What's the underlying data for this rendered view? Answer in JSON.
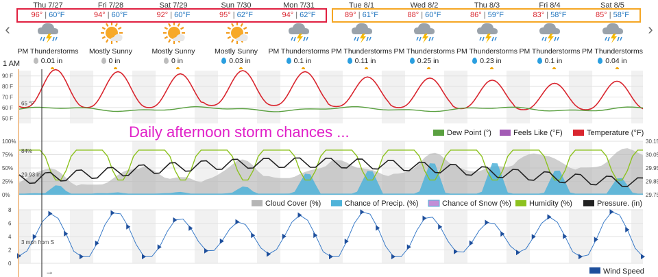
{
  "start_time_label": "1 AM",
  "days": [
    {
      "name": "Thu 7/27",
      "hi": "96°",
      "lo": "60°F",
      "icon": "thunderstorm-icon",
      "condition": "PM Thunderstorms",
      "precip": "0.01 in",
      "drop": "gray"
    },
    {
      "name": "Fri 7/28",
      "hi": "94°",
      "lo": "60°F",
      "icon": "sun-icon",
      "condition": "Mostly Sunny",
      "precip": "0 in",
      "drop": "gray"
    },
    {
      "name": "Sat 7/29",
      "hi": "92°",
      "lo": "60°F",
      "icon": "sun-icon",
      "condition": "Mostly Sunny",
      "precip": "0 in",
      "drop": "gray"
    },
    {
      "name": "Sun 7/30",
      "hi": "95°",
      "lo": "62°F",
      "icon": "sun-icon",
      "condition": "Mostly Sunny",
      "precip": "0.03 in",
      "drop": "blue"
    },
    {
      "name": "Mon 7/31",
      "hi": "94°",
      "lo": "62°F",
      "icon": "thunderstorm-icon",
      "condition": "PM Thunderstorms",
      "precip": "0.1 in",
      "drop": "blue"
    },
    {
      "name": "Tue 8/1",
      "hi": "89°",
      "lo": "61°F",
      "icon": "thunderstorm-icon",
      "condition": "PM Thunderstorms",
      "precip": "0.11 in",
      "drop": "blue"
    },
    {
      "name": "Wed 8/2",
      "hi": "88°",
      "lo": "60°F",
      "icon": "thunderstorm-icon",
      "condition": "PM Thunderstorms",
      "precip": "0.25 in",
      "drop": "blue"
    },
    {
      "name": "Thu 8/3",
      "hi": "86°",
      "lo": "59°F",
      "icon": "thunderstorm-icon",
      "condition": "PM Thunderstorms",
      "precip": "0.23 in",
      "drop": "blue"
    },
    {
      "name": "Fri 8/4",
      "hi": "83°",
      "lo": "58°F",
      "icon": "thunderstorm-icon",
      "condition": "PM Thunderstorms",
      "precip": "0.1 in",
      "drop": "blue"
    },
    {
      "name": "Sat 8/5",
      "hi": "85°",
      "lo": "58°F",
      "icon": "thunderstorm-icon",
      "condition": "PM Thunderstorms",
      "precip": "0.04 in",
      "drop": "blue"
    }
  ],
  "annotation": "Daily afternoon storm chances ...",
  "chart_data": [
    {
      "type": "line",
      "ylabel": "",
      "ylim": [
        45,
        95
      ],
      "y_ticks": [
        "90 F",
        "80 F",
        "70 F",
        "60 F",
        "50 F"
      ],
      "current_label": "65 °F",
      "legend": [
        "Dew Point (°)",
        "Feels Like (°F)",
        "Temperature (°F)"
      ],
      "series": [
        {
          "name": "Temperature (°F)",
          "color": "#d9262f",
          "daily_high": [
            96,
            94,
            92,
            95,
            94,
            89,
            88,
            86,
            83,
            85
          ],
          "daily_low": [
            60,
            60,
            60,
            62,
            62,
            61,
            60,
            59,
            58,
            58
          ]
        },
        {
          "name": "Dew Point (°)",
          "color": "#5aa040",
          "typical_range": [
            56,
            61
          ]
        }
      ]
    },
    {
      "type": "area",
      "ylim": [
        0,
        100
      ],
      "y_ticks": [
        "100%",
        "75%",
        "50%",
        "25%",
        "0%"
      ],
      "right_ticks": [
        "30.15",
        "30.05",
        "29.95",
        "29.85",
        "29.75"
      ],
      "current_labels": [
        "84%",
        "29.93 in"
      ],
      "legend": [
        "Cloud Cover (%)",
        "Chance of Precip. (%)",
        "Chance of Snow (%)",
        "Humidity (%)",
        "Pressure. (in)"
      ],
      "colors": {
        "cloud": "#b5b5b5",
        "precip": "#4fb3d9",
        "snow": "#c28ed6",
        "humidity": "#8dc21f",
        "pressure": "#222222"
      },
      "daily_precip_chance_peak": [
        20,
        5,
        5,
        15,
        40,
        45,
        60,
        60,
        45,
        30
      ],
      "humidity_range": [
        25,
        90
      ]
    },
    {
      "type": "line",
      "ylim": [
        0,
        8
      ],
      "y_ticks": [
        "8",
        "6",
        "4",
        "2",
        "0"
      ],
      "current_label": "3 mph from S",
      "legend": [
        "Wind Speed"
      ],
      "series": [
        {
          "name": "Wind Speed",
          "color": "#3a7bc8",
          "range_mph": [
            1,
            8
          ]
        }
      ]
    }
  ]
}
